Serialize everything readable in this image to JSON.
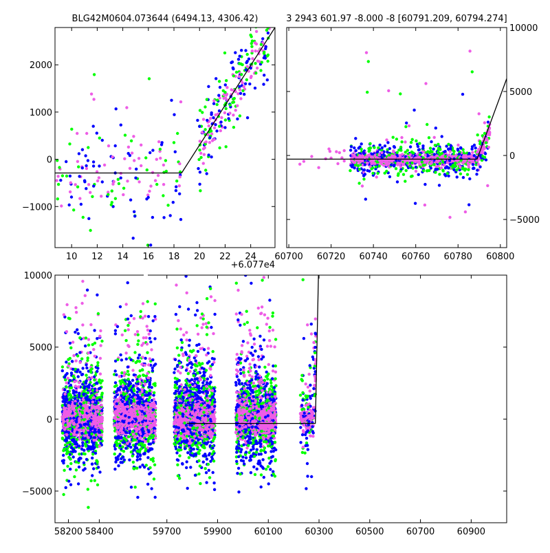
{
  "colors": {
    "green": "#00ff00",
    "blue": "#0000ff",
    "pink": "#ee5de6",
    "line": "#000000"
  },
  "chart_data": [
    {
      "id": "top-left",
      "type": "scatter",
      "title": "BLG42M0604.073644 (6494.13, 4306.42)",
      "xlim": [
        8.7,
        25.9
      ],
      "ylim": [
        -1870,
        2790
      ],
      "xticks": [
        10,
        12,
        14,
        16,
        18,
        20,
        22,
        24
      ],
      "yticks": [
        -1000,
        0,
        1000,
        2000
      ],
      "ytick_labels": [
        "−1000",
        "0",
        "1000",
        "2000"
      ],
      "offset_label": "+6.077e4",
      "fit_line": [
        [
          8.7,
          -290
        ],
        [
          18.6,
          -290
        ],
        [
          25.9,
          2790
        ]
      ],
      "baseline_range": [
        -1500,
        900
      ],
      "rise": {
        "x0": 18.6,
        "y0": -290,
        "x1": 25.9,
        "y1": 2790
      }
    },
    {
      "id": "top-right",
      "type": "scatter",
      "title": "3 2943 601.97 -8.000 -8 [60791.209, 60794.274]",
      "xlim": [
        60699,
        60803
      ],
      "ylim": [
        -7200,
        10000
      ],
      "xticks": [
        60700,
        60720,
        60740,
        60760,
        60780,
        60800
      ],
      "yticks": [
        -5000,
        0,
        5000,
        10000
      ],
      "ytick_labels": [
        "−5000",
        "0",
        "5000",
        "10000"
      ],
      "fit_line": [
        [
          60699,
          -290
        ],
        [
          60789,
          -290
        ],
        [
          60803,
          6000
        ]
      ],
      "data_xrange": [
        60729,
        60795
      ]
    },
    {
      "id": "bottom",
      "type": "scatter",
      "xlim": [
        58113,
        61040
      ],
      "ylim": [
        -7200,
        10000
      ],
      "segments": [
        {
          "display_from": 58113,
          "display_to": 58460,
          "real_from": 58113,
          "real_to": 58460
        },
        {
          "display_from": 58460,
          "display_to": 61040,
          "real_from": 59470,
          "real_to": 61040
        }
      ],
      "xticks": [
        58200,
        58400,
        59700,
        59900,
        60100,
        60300,
        60500,
        60700,
        60900
      ],
      "yticks": [
        -5000,
        0,
        5000,
        10000
      ],
      "ytick_labels": [
        "−5000",
        "0",
        "5000",
        "10000"
      ],
      "seasons": [
        {
          "display_from": 58160,
          "display_to": 58420
        },
        {
          "display_from": 58497,
          "display_to": 58765
        },
        {
          "display_from": 58885,
          "display_to": 59150
        },
        {
          "display_from": 59285,
          "display_to": 59545
        },
        {
          "display_from": 59702,
          "display_to": 59803
        }
      ],
      "fit_line": [
        [
          58968,
          -300
        ],
        [
          59800,
          -300
        ],
        [
          59820,
          10000
        ]
      ]
    }
  ]
}
